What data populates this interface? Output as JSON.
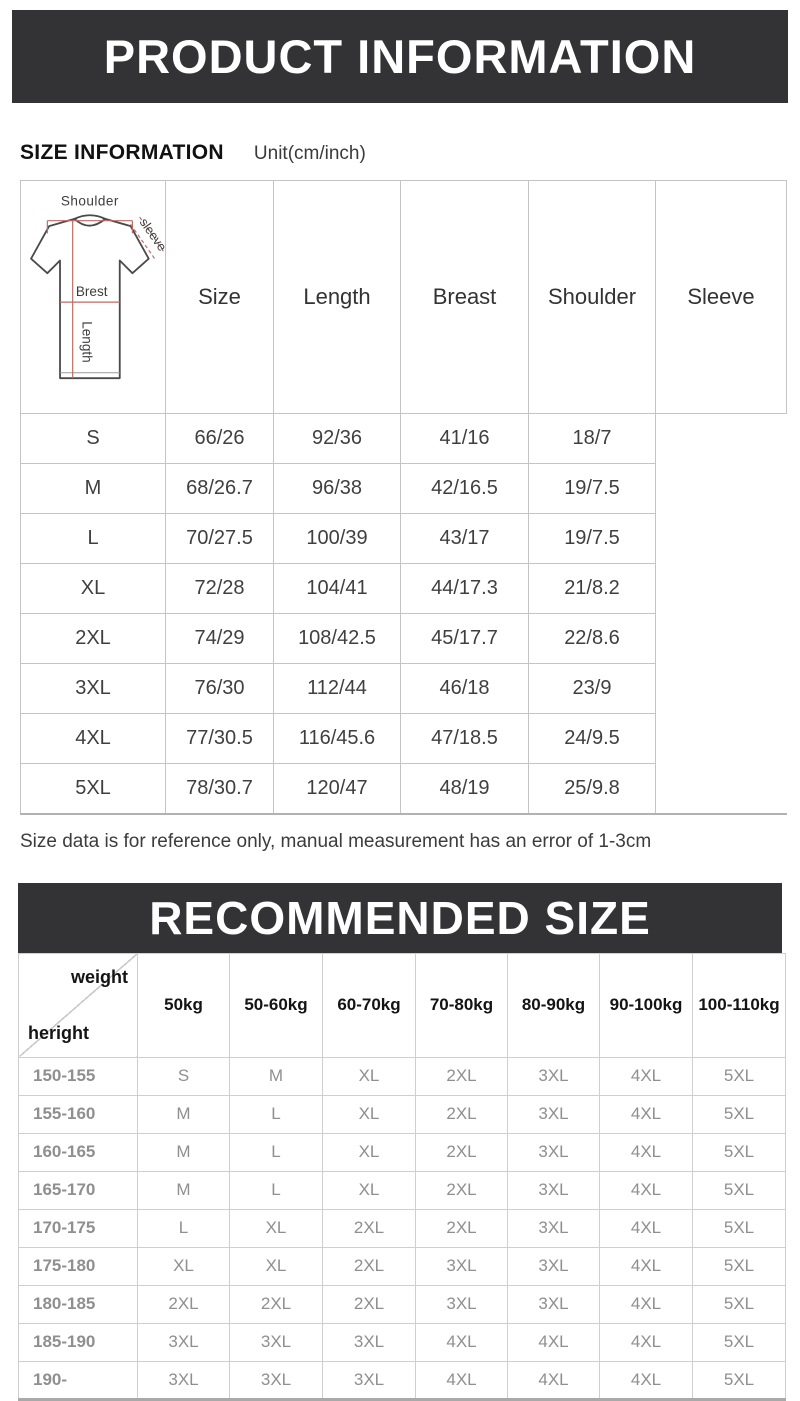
{
  "banners": {
    "product_information": "PRODUCT INFORMATION",
    "recommended_size": "RECOMMENDED SIZE"
  },
  "size_info": {
    "title": "SIZE INFORMATION",
    "unit": "Unit(cm/inch)",
    "note": "Size data is for reference only, manual measurement has an error of 1-3cm"
  },
  "size_table": {
    "headers": [
      "Size",
      "Length",
      "Breast",
      "Shoulder",
      "Sleeve"
    ],
    "rows": [
      [
        "S",
        "66/26",
        "92/36",
        "41/16",
        "18/7"
      ],
      [
        "M",
        "68/26.7",
        "96/38",
        "42/16.5",
        "19/7.5"
      ],
      [
        "L",
        "70/27.5",
        "100/39",
        "43/17",
        "19/7.5"
      ],
      [
        "XL",
        "72/28",
        "104/41",
        "44/17.3",
        "21/8.2"
      ],
      [
        "2XL",
        "74/29",
        "108/42.5",
        "45/17.7",
        "22/8.6"
      ],
      [
        "3XL",
        "76/30",
        "112/44",
        "46/18",
        "23/9"
      ],
      [
        "4XL",
        "77/30.5",
        "116/45.6",
        "47/18.5",
        "24/9.5"
      ],
      [
        "5XL",
        "78/30.7",
        "120/47",
        "48/19",
        "25/9.8"
      ]
    ],
    "diagram_labels": {
      "shoulder": "Shoulder",
      "sleeve": "sleeve",
      "breast": "Brest",
      "length": "Length"
    }
  },
  "recommend_table": {
    "corner": {
      "top": "weight",
      "bottom": "heright"
    },
    "weight_headers": [
      "50kg",
      "50-60kg",
      "60-70kg",
      "70-80kg",
      "80-90kg",
      "90-100kg",
      "100-110kg"
    ],
    "rows": [
      {
        "height": "150-155",
        "sizes": [
          "S",
          "M",
          "XL",
          "2XL",
          "3XL",
          "4XL",
          "5XL"
        ]
      },
      {
        "height": "155-160",
        "sizes": [
          "M",
          "L",
          "XL",
          "2XL",
          "3XL",
          "4XL",
          "5XL"
        ]
      },
      {
        "height": "160-165",
        "sizes": [
          "M",
          "L",
          "XL",
          "2XL",
          "3XL",
          "4XL",
          "5XL"
        ]
      },
      {
        "height": "165-170",
        "sizes": [
          "M",
          "L",
          "XL",
          "2XL",
          "3XL",
          "4XL",
          "5XL"
        ]
      },
      {
        "height": "170-175",
        "sizes": [
          "L",
          "XL",
          "2XL",
          "2XL",
          "3XL",
          "4XL",
          "5XL"
        ]
      },
      {
        "height": "175-180",
        "sizes": [
          "XL",
          "XL",
          "2XL",
          "3XL",
          "3XL",
          "4XL",
          "5XL"
        ]
      },
      {
        "height": "180-185",
        "sizes": [
          "2XL",
          "2XL",
          "2XL",
          "3XL",
          "3XL",
          "4XL",
          "5XL"
        ]
      },
      {
        "height": "185-190",
        "sizes": [
          "3XL",
          "3XL",
          "3XL",
          "4XL",
          "4XL",
          "4XL",
          "5XL"
        ]
      },
      {
        "height": "190-",
        "sizes": [
          "3XL",
          "3XL",
          "3XL",
          "4XL",
          "4XL",
          "4XL",
          "5XL"
        ]
      }
    ]
  },
  "colors": {
    "banner_bg": "#333336",
    "banner_text": "#ffffff",
    "table_border": "#c9c9c9",
    "measure_line_red": "#bd6a63",
    "muted_cell_text": "#8f8f8f"
  }
}
